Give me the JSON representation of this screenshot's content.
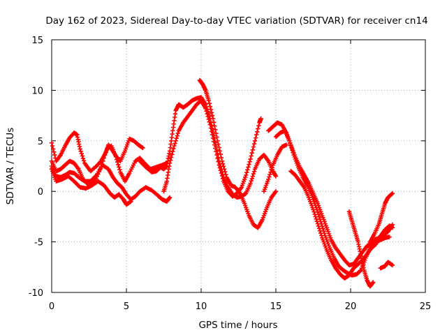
{
  "chart_data": {
    "type": "scatter",
    "title": "Day 162 of 2023, Sidereal Day-to-day VTEC variation (SDTVAR) for receiver cn14",
    "xlabel": "GPS time / hours",
    "ylabel": "SDTVAR / TECUs",
    "xlim": [
      0,
      25
    ],
    "ylim": [
      -10,
      15
    ],
    "xticks": [
      "0",
      "5",
      "10",
      "15",
      "20",
      "25"
    ],
    "yticks": [
      "-10",
      "-5",
      "0",
      "5",
      "10",
      "15"
    ],
    "grid": true,
    "marker": "plus",
    "color": "#ff0000",
    "series": [
      {
        "name": "track-1",
        "points": [
          [
            0.0,
            4.8
          ],
          [
            0.3,
            3.0
          ],
          [
            0.6,
            3.6
          ],
          [
            0.9,
            4.5
          ],
          [
            1.2,
            5.3
          ],
          [
            1.5,
            5.8
          ],
          [
            1.7,
            5.6
          ],
          [
            1.9,
            4.2
          ],
          [
            2.2,
            2.8
          ],
          [
            2.6,
            2.0
          ],
          [
            3.0,
            2.5
          ],
          [
            3.3,
            3.0
          ],
          [
            3.6,
            3.8
          ],
          [
            3.8,
            4.6
          ],
          [
            4.0,
            4.2
          ],
          [
            4.3,
            3.5
          ],
          [
            4.6,
            3.0
          ],
          [
            4.9,
            4.0
          ],
          [
            5.2,
            5.2
          ],
          [
            5.5,
            5.0
          ],
          [
            5.8,
            4.6
          ],
          [
            6.1,
            4.3
          ]
        ]
      },
      {
        "name": "track-2",
        "points": [
          [
            0.0,
            3.0
          ],
          [
            0.3,
            2.0
          ],
          [
            0.6,
            2.2
          ],
          [
            0.9,
            2.6
          ],
          [
            1.2,
            3.0
          ],
          [
            1.5,
            2.8
          ],
          [
            1.8,
            2.2
          ],
          [
            2.1,
            1.2
          ],
          [
            2.5,
            0.6
          ],
          [
            2.9,
            1.0
          ],
          [
            3.3,
            2.4
          ],
          [
            3.7,
            4.2
          ],
          [
            4.0,
            4.5
          ],
          [
            4.3,
            3.4
          ],
          [
            4.6,
            1.9
          ],
          [
            4.9,
            1.0
          ],
          [
            5.2,
            1.8
          ],
          [
            5.6,
            3.0
          ],
          [
            5.9,
            3.3
          ],
          [
            6.2,
            2.8
          ],
          [
            6.6,
            2.2
          ],
          [
            7.0,
            2.4
          ],
          [
            7.4,
            2.6
          ],
          [
            7.7,
            2.8
          ]
        ]
      },
      {
        "name": "track-3",
        "points": [
          [
            0.0,
            2.5
          ],
          [
            0.3,
            1.5
          ],
          [
            0.6,
            1.4
          ],
          [
            0.9,
            1.6
          ],
          [
            1.2,
            1.9
          ],
          [
            1.5,
            1.8
          ],
          [
            1.8,
            1.4
          ],
          [
            2.2,
            1.0
          ],
          [
            2.6,
            1.0
          ],
          [
            3.0,
            1.6
          ],
          [
            3.4,
            2.6
          ],
          [
            3.8,
            2.2
          ],
          [
            4.1,
            1.4
          ],
          [
            4.4,
            0.8
          ],
          [
            4.7,
            0.4
          ],
          [
            5.0,
            -0.3
          ],
          [
            5.3,
            -0.8
          ],
          [
            5.6,
            -0.5
          ],
          [
            5.9,
            0.0
          ],
          [
            6.3,
            0.4
          ],
          [
            6.7,
            0.1
          ],
          [
            7.1,
            -0.4
          ],
          [
            7.4,
            -0.8
          ],
          [
            7.7,
            -1.0
          ],
          [
            7.9,
            -0.6
          ]
        ]
      },
      {
        "name": "track-4",
        "points": [
          [
            0.0,
            2.2
          ],
          [
            0.3,
            1.0
          ],
          [
            0.7,
            1.2
          ],
          [
            1.1,
            1.5
          ],
          [
            1.5,
            1.0
          ],
          [
            1.9,
            0.4
          ],
          [
            2.3,
            0.3
          ],
          [
            2.7,
            0.6
          ],
          [
            3.1,
            1.0
          ],
          [
            3.5,
            0.6
          ],
          [
            3.9,
            -0.2
          ],
          [
            4.2,
            -0.6
          ],
          [
            4.5,
            -0.3
          ],
          [
            4.8,
            -0.8
          ],
          [
            5.0,
            -1.3
          ],
          [
            5.3,
            -1.0
          ]
        ]
      },
      {
        "name": "track-5",
        "points": [
          [
            5.9,
            3.0
          ],
          [
            6.3,
            2.4
          ],
          [
            6.7,
            1.9
          ],
          [
            7.0,
            2.0
          ],
          [
            7.3,
            2.4
          ],
          [
            7.5,
            2.2
          ],
          [
            7.7,
            2.5
          ],
          [
            7.9,
            4.0
          ],
          [
            8.1,
            6.0
          ],
          [
            8.3,
            8.0
          ],
          [
            8.5,
            8.6
          ],
          [
            8.8,
            8.3
          ],
          [
            9.1,
            8.6
          ],
          [
            9.4,
            9.0
          ],
          [
            9.7,
            9.2
          ],
          [
            10.0,
            9.3
          ],
          [
            10.3,
            8.6
          ],
          [
            10.6,
            7.2
          ],
          [
            10.9,
            5.2
          ],
          [
            11.2,
            3.0
          ],
          [
            11.5,
            1.4
          ],
          [
            11.8,
            0.4
          ],
          [
            12.1,
            -0.3
          ],
          [
            12.4,
            -0.6
          ],
          [
            12.7,
            -0.5
          ],
          [
            13.0,
            -0.2
          ],
          [
            13.3,
            0.8
          ],
          [
            13.6,
            2.2
          ],
          [
            13.9,
            3.2
          ],
          [
            14.2,
            3.6
          ],
          [
            14.5,
            3.0
          ],
          [
            14.8,
            2.0
          ],
          [
            15.0,
            1.5
          ]
        ]
      },
      {
        "name": "track-6",
        "points": [
          [
            7.5,
            0.0
          ],
          [
            7.7,
            1.0
          ],
          [
            7.9,
            2.8
          ],
          [
            8.2,
            4.5
          ],
          [
            8.5,
            6.0
          ],
          [
            8.8,
            6.8
          ],
          [
            9.1,
            7.4
          ],
          [
            9.4,
            8.0
          ],
          [
            9.7,
            8.6
          ],
          [
            10.0,
            9.0
          ],
          [
            10.3,
            8.2
          ],
          [
            10.6,
            6.6
          ],
          [
            10.9,
            4.6
          ],
          [
            11.2,
            2.6
          ],
          [
            11.5,
            1.0
          ],
          [
            11.8,
            0.0
          ],
          [
            12.1,
            -0.5
          ],
          [
            12.4,
            -0.2
          ],
          [
            12.7,
            0.4
          ],
          [
            13.0,
            1.6
          ],
          [
            13.3,
            3.2
          ],
          [
            13.6,
            5.0
          ],
          [
            13.9,
            6.8
          ],
          [
            14.0,
            7.2
          ]
        ]
      },
      {
        "name": "track-7",
        "points": [
          [
            9.9,
            11.0
          ],
          [
            10.1,
            10.6
          ],
          [
            10.3,
            10.0
          ],
          [
            10.5,
            9.0
          ],
          [
            10.8,
            7.2
          ],
          [
            11.1,
            5.0
          ],
          [
            11.4,
            3.0
          ],
          [
            11.7,
            1.4
          ],
          [
            12.0,
            0.6
          ],
          [
            12.3,
            0.4
          ],
          [
            12.6,
            -0.2
          ],
          [
            12.9,
            -1.2
          ],
          [
            13.2,
            -2.4
          ],
          [
            13.5,
            -3.3
          ],
          [
            13.8,
            -3.6
          ],
          [
            14.1,
            -2.8
          ],
          [
            14.4,
            -1.6
          ],
          [
            14.7,
            -0.6
          ],
          [
            15.0,
            0.0
          ]
        ]
      },
      {
        "name": "track-8",
        "points": [
          [
            14.5,
            6.0
          ],
          [
            14.8,
            6.4
          ],
          [
            15.1,
            6.8
          ],
          [
            15.4,
            6.6
          ],
          [
            15.7,
            5.8
          ],
          [
            16.0,
            4.6
          ],
          [
            16.3,
            3.4
          ],
          [
            16.6,
            2.4
          ],
          [
            16.9,
            1.6
          ],
          [
            17.2,
            0.8
          ],
          [
            17.5,
            -0.2
          ],
          [
            17.8,
            -1.2
          ],
          [
            18.1,
            -2.4
          ],
          [
            18.4,
            -3.6
          ],
          [
            18.7,
            -4.8
          ],
          [
            19.0,
            -5.6
          ],
          [
            19.3,
            -6.2
          ],
          [
            19.6,
            -6.8
          ],
          [
            19.9,
            -7.3
          ],
          [
            20.2,
            -7.2
          ],
          [
            20.5,
            -6.6
          ],
          [
            20.8,
            -6.0
          ],
          [
            21.1,
            -5.4
          ],
          [
            21.4,
            -5.1
          ],
          [
            21.7,
            -5.0
          ],
          [
            22.0,
            -4.8
          ],
          [
            22.3,
            -4.6
          ],
          [
            22.6,
            -4.5
          ]
        ]
      },
      {
        "name": "track-9",
        "points": [
          [
            15.0,
            5.4
          ],
          [
            15.3,
            5.8
          ],
          [
            15.6,
            6.0
          ],
          [
            15.9,
            5.0
          ],
          [
            16.2,
            3.6
          ],
          [
            16.5,
            2.4
          ],
          [
            16.8,
            1.4
          ],
          [
            17.1,
            0.6
          ],
          [
            17.4,
            -0.4
          ],
          [
            17.7,
            -1.6
          ],
          [
            18.0,
            -3.0
          ],
          [
            18.3,
            -4.4
          ],
          [
            18.6,
            -5.6
          ],
          [
            18.9,
            -6.6
          ],
          [
            19.2,
            -7.4
          ],
          [
            19.5,
            -7.8
          ],
          [
            19.8,
            -8.1
          ],
          [
            20.1,
            -8.3
          ],
          [
            20.4,
            -8.2
          ],
          [
            20.7,
            -7.8
          ],
          [
            21.0,
            -6.6
          ],
          [
            21.3,
            -5.6
          ],
          [
            21.6,
            -4.8
          ],
          [
            21.9,
            -4.6
          ],
          [
            22.2,
            -4.3
          ],
          [
            22.5,
            -4.0
          ],
          [
            22.8,
            -3.3
          ]
        ]
      },
      {
        "name": "track-10",
        "points": [
          [
            16.0,
            2.0
          ],
          [
            16.3,
            1.6
          ],
          [
            16.6,
            1.0
          ],
          [
            16.9,
            0.4
          ],
          [
            17.2,
            -0.6
          ],
          [
            17.5,
            -1.8
          ],
          [
            17.8,
            -3.2
          ],
          [
            18.1,
            -4.6
          ],
          [
            18.4,
            -5.8
          ],
          [
            18.7,
            -6.8
          ],
          [
            19.0,
            -7.6
          ],
          [
            19.3,
            -8.2
          ],
          [
            19.6,
            -8.6
          ],
          [
            19.9,
            -8.3
          ],
          [
            20.2,
            -7.6
          ],
          [
            20.5,
            -7.2
          ],
          [
            20.8,
            -6.8
          ],
          [
            21.1,
            -6.2
          ],
          [
            21.4,
            -5.6
          ],
          [
            21.7,
            -5.2
          ],
          [
            22.0,
            -4.4
          ],
          [
            22.3,
            -3.8
          ],
          [
            22.6,
            -3.4
          ],
          [
            22.8,
            -3.6
          ]
        ]
      },
      {
        "name": "track-11",
        "points": [
          [
            19.9,
            -2.0
          ],
          [
            20.1,
            -3.0
          ],
          [
            20.3,
            -4.0
          ],
          [
            20.5,
            -5.0
          ],
          [
            20.7,
            -6.4
          ],
          [
            20.9,
            -7.8
          ],
          [
            21.1,
            -8.8
          ],
          [
            21.3,
            -9.4
          ],
          [
            21.5,
            -9.0
          ]
        ]
      },
      {
        "name": "track-12",
        "points": [
          [
            21.3,
            -5.0
          ],
          [
            21.6,
            -4.2
          ],
          [
            21.9,
            -3.2
          ],
          [
            22.1,
            -2.2
          ],
          [
            22.3,
            -1.2
          ],
          [
            22.5,
            -0.6
          ],
          [
            22.8,
            -0.2
          ]
        ]
      },
      {
        "name": "track-13",
        "points": [
          [
            22.0,
            -7.6
          ],
          [
            22.3,
            -7.4
          ],
          [
            22.5,
            -7.0
          ],
          [
            22.8,
            -7.3
          ]
        ]
      },
      {
        "name": "track-14",
        "points": [
          [
            14.2,
            0.0
          ],
          [
            14.5,
            1.2
          ],
          [
            14.8,
            2.6
          ],
          [
            15.1,
            3.6
          ],
          [
            15.4,
            4.4
          ],
          [
            15.7,
            4.6
          ]
        ]
      }
    ]
  }
}
